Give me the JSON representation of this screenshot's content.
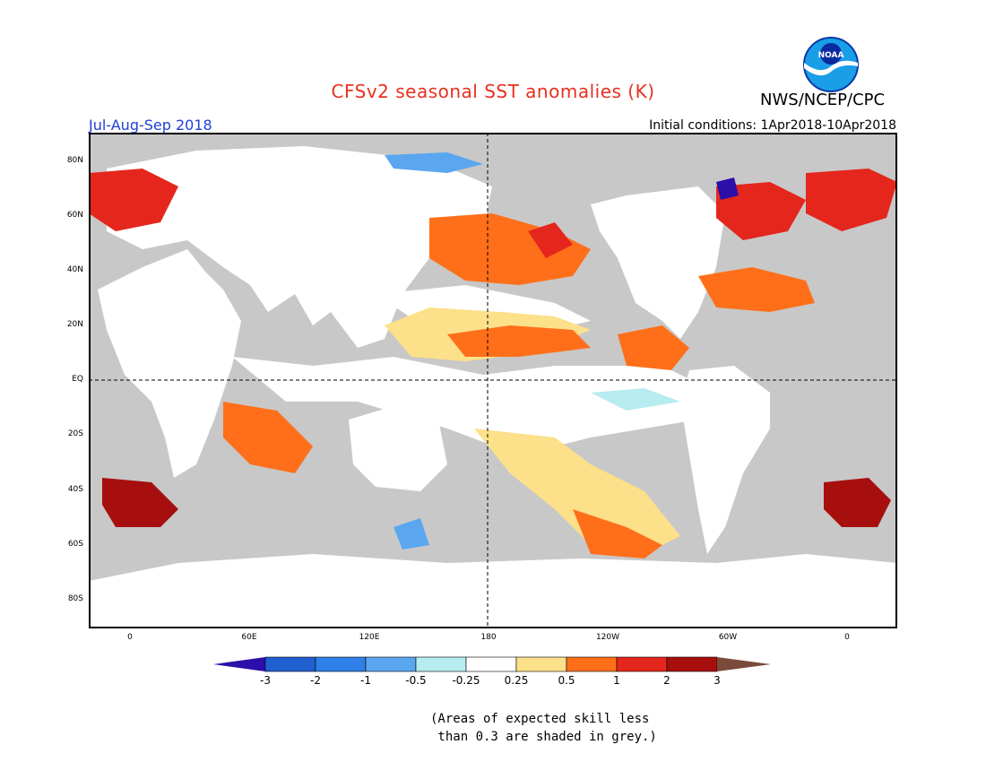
{
  "title": "CFSv2 seasonal SST anomalies (K)",
  "agency": "NWS/NCEP/CPC",
  "logo_text": "NOAA",
  "season": "Jul-Aug-Sep 2018",
  "initial_conditions": "Initial conditions: 1Apr2018-10Apr2018",
  "lat_labels": [
    "80N",
    "60N",
    "40N",
    "20N",
    "EQ",
    "20S",
    "40S",
    "60S",
    "80S"
  ],
  "lon_labels": [
    "0",
    "60E",
    "120E",
    "180",
    "120W",
    "60W",
    "0"
  ],
  "colorbar": {
    "labels": [
      "-3",
      "-2",
      "-1",
      "-0.5",
      "-0.25",
      "0.25",
      "0.5",
      "1",
      "2",
      "3"
    ],
    "colors": [
      "#2b0fa8",
      "#1f5fd0",
      "#2f80e8",
      "#5aa7f0",
      "#b7ecf0",
      "#ffffff",
      "#fde08a",
      "#ff6f1a",
      "#e5261d",
      "#a70f0f",
      "#7a4a3a"
    ]
  },
  "note_line1": "(Areas of expected skill less",
  "note_line2": " than 0.3 are shaded in grey.)",
  "colors": {
    "grey": "#c8c8c8",
    "title": "#e8301f",
    "season": "#1f3fd6"
  }
}
